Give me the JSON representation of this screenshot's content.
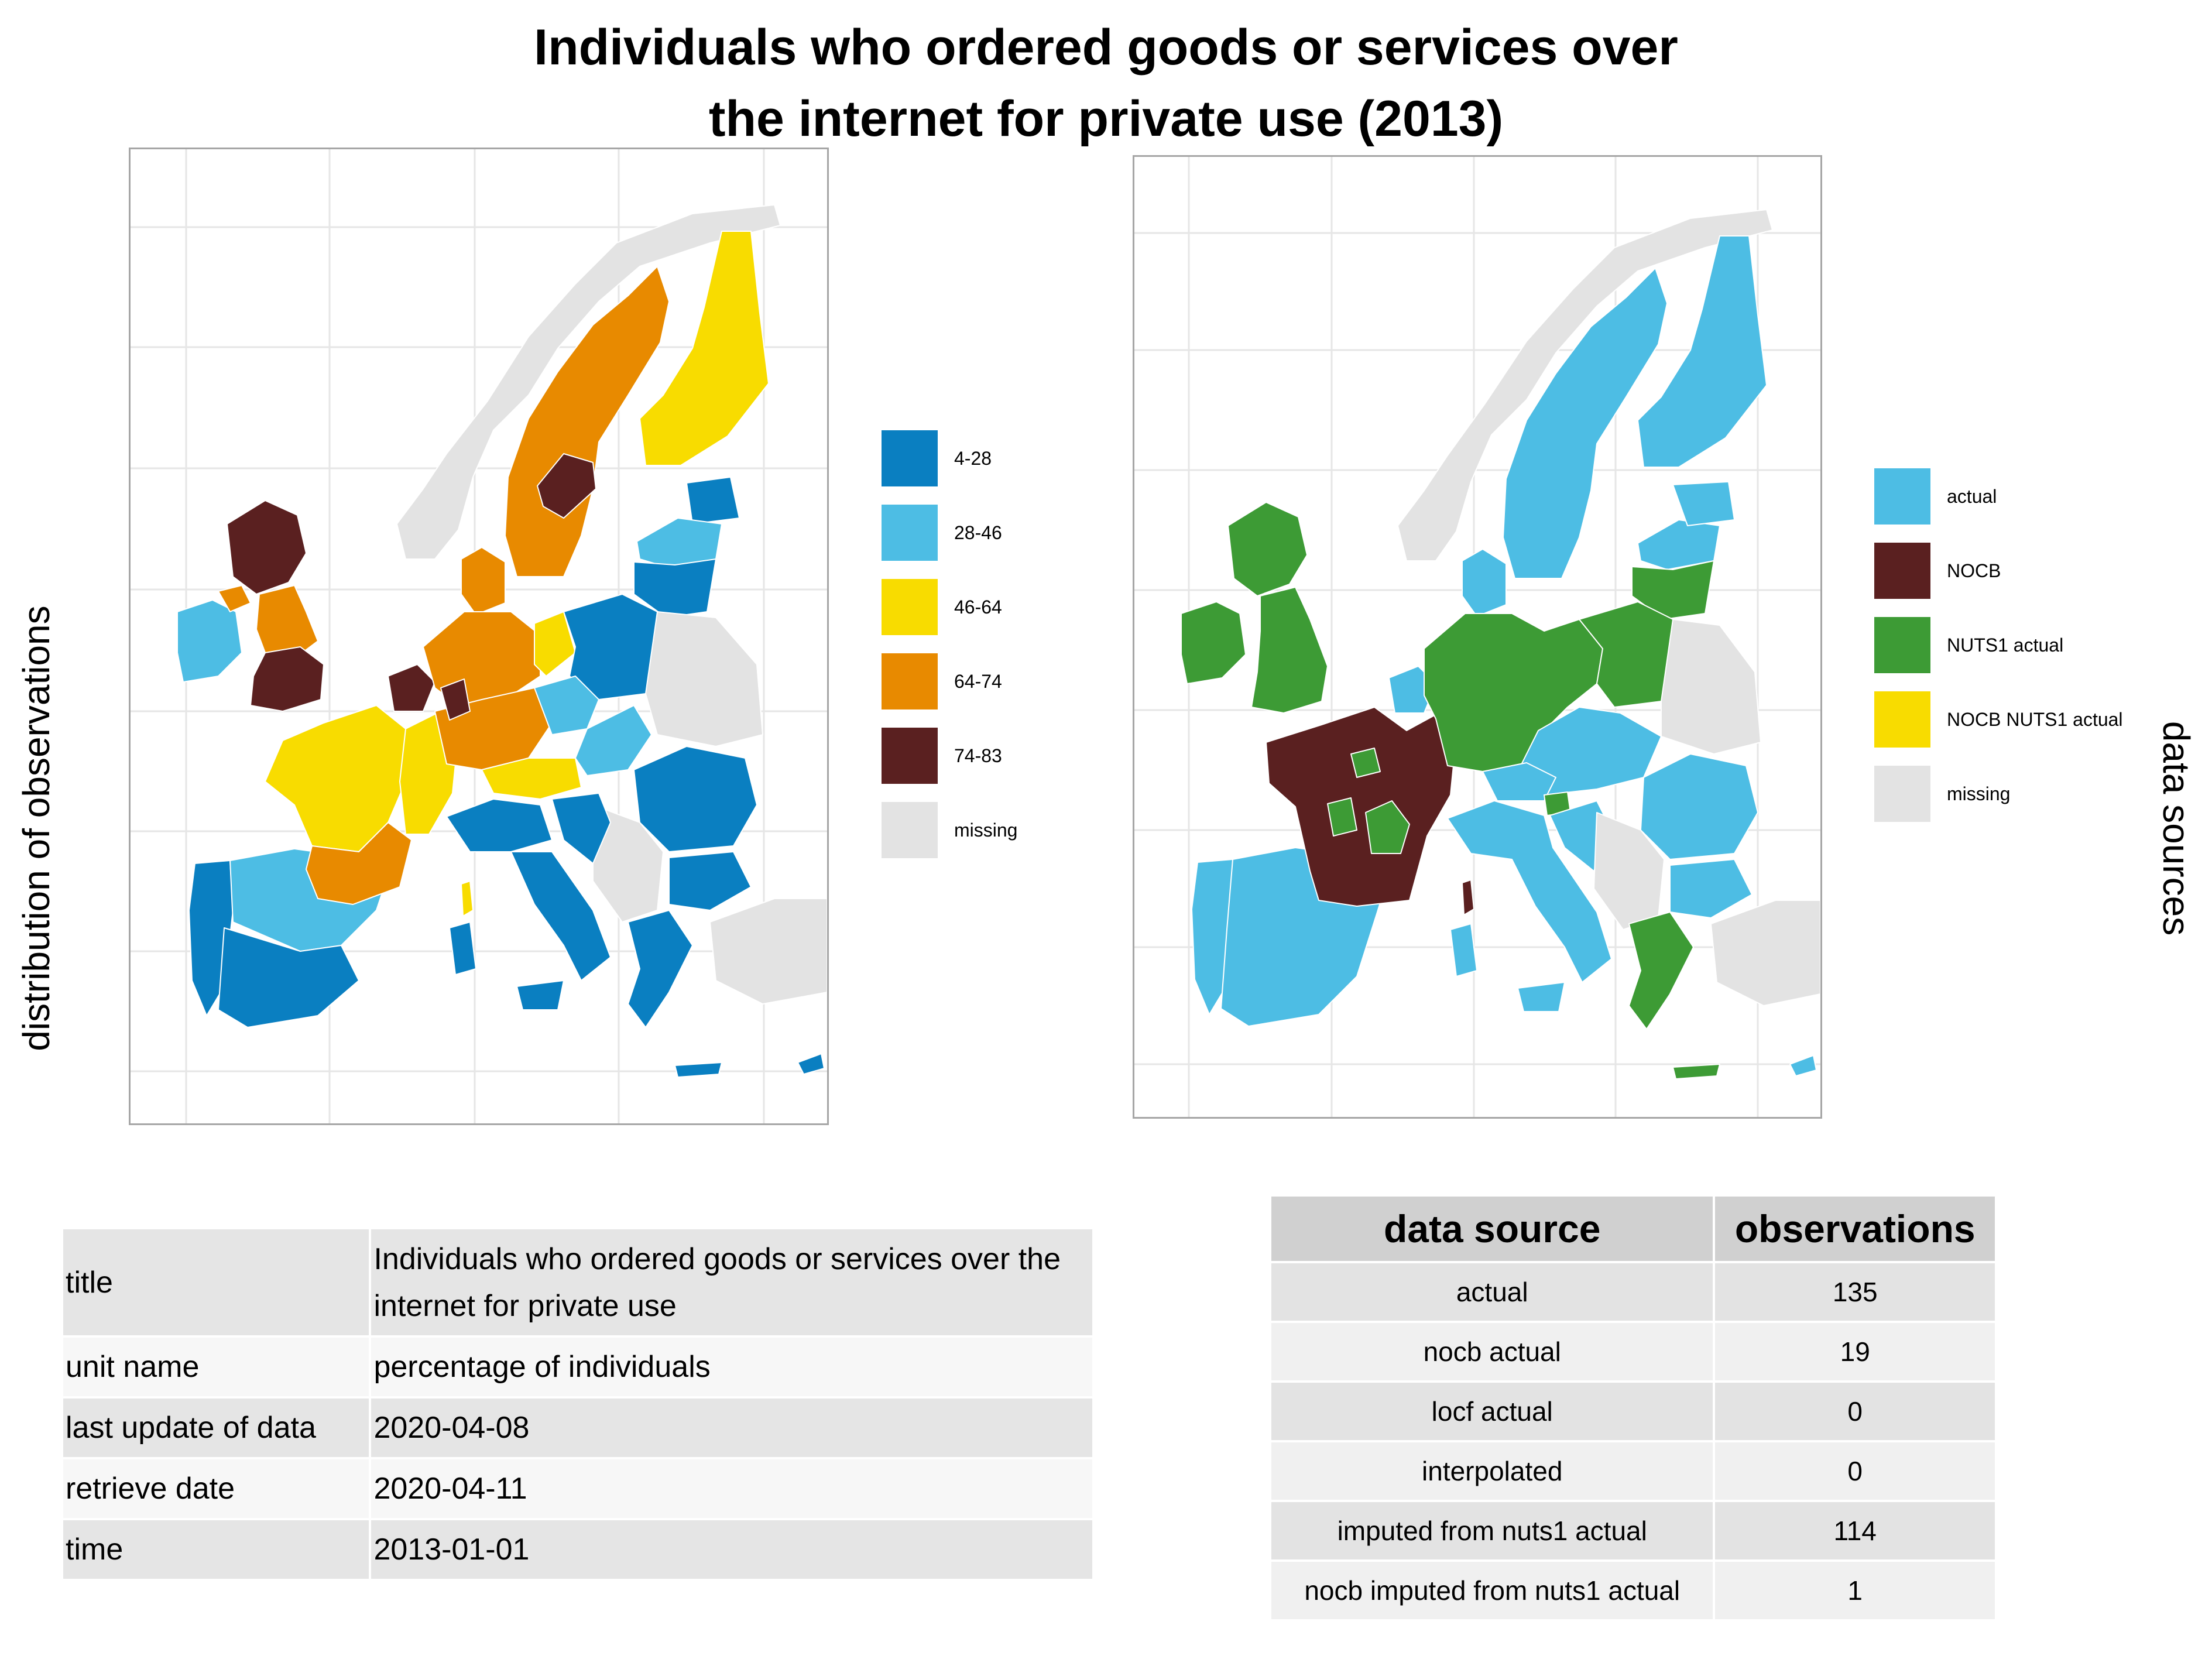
{
  "figure": {
    "title_line1": "Individuals who ordered goods or services over",
    "title_line2": "the internet for private use (2013)",
    "left_axis_label": "distribution of observations",
    "right_axis_label": "data sources"
  },
  "colors": {
    "dark_blue": "#0a7fc1",
    "light_blue": "#4dbde4",
    "yellow": "#f8dc00",
    "orange": "#e88a00",
    "dark_brown": "#5a2020",
    "missing": "#e3e3e3",
    "green": "#3d9b35",
    "gridline": "#e6e6e6"
  },
  "left_map": {
    "legend": [
      {
        "label": "4-28",
        "color": "#0a7fc1"
      },
      {
        "label": "28-46",
        "color": "#4dbde4"
      },
      {
        "label": "46-64",
        "color": "#f8dc00"
      },
      {
        "label": "64-74",
        "color": "#e88a00"
      },
      {
        "label": "74-83",
        "color": "#5a2020"
      },
      {
        "label": "missing",
        "color": "#e3e3e3"
      }
    ]
  },
  "right_map": {
    "legend": [
      {
        "label": "actual",
        "color": "#4dbde4"
      },
      {
        "label": "NOCB",
        "color": "#5a2020"
      },
      {
        "label": "NUTS1 actual",
        "color": "#3d9b35"
      },
      {
        "label": "NOCB NUTS1 actual",
        "color": "#f8dc00"
      },
      {
        "label": "missing",
        "color": "#e3e3e3"
      }
    ]
  },
  "metadata_table": {
    "rows": [
      {
        "key": "title",
        "value": "Individuals who ordered goods or services over the internet for private use"
      },
      {
        "key": "unit name",
        "value": "percentage of individuals"
      },
      {
        "key": "last update of data",
        "value": "2020-04-08"
      },
      {
        "key": "retrieve date",
        "value": "2020-04-11"
      },
      {
        "key": "time",
        "value": "2013-01-01"
      }
    ]
  },
  "source_table": {
    "headers": [
      "data source",
      "observations"
    ],
    "rows": [
      {
        "source": "actual",
        "observations": "135"
      },
      {
        "source": "nocb actual",
        "observations": "19"
      },
      {
        "source": "locf actual",
        "observations": "0"
      },
      {
        "source": "interpolated",
        "observations": "0"
      },
      {
        "source": "imputed from nuts1 actual",
        "observations": "114"
      },
      {
        "source": "nocb imputed from nuts1 actual",
        "observations": "1"
      }
    ]
  }
}
